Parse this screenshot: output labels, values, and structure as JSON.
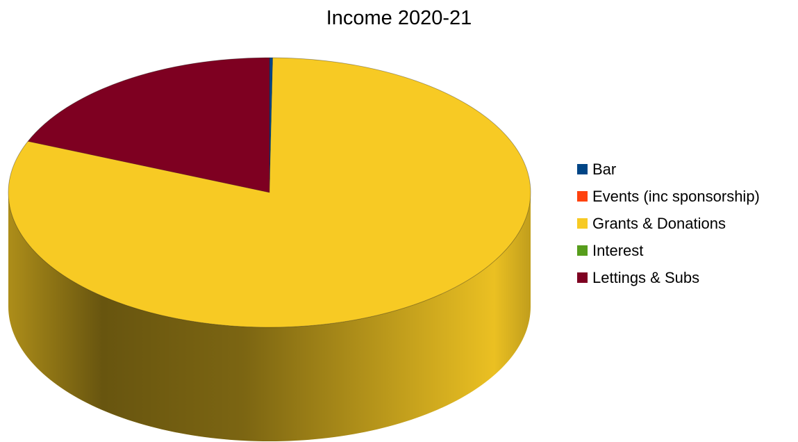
{
  "chart_data": {
    "type": "pie",
    "title": "Income 2020-21",
    "categories": [
      "Bar",
      "Events (inc sponsorship)",
      "Grants & Donations",
      "Interest",
      "Lettings & Subs"
    ],
    "values": [
      0.2,
      0.0,
      81.0,
      0.0,
      18.8
    ],
    "unit": "percent of total (estimated)",
    "colors": [
      "#004586",
      "#ff420e",
      "#f7ca24",
      "#579d1c",
      "#7e0021"
    ],
    "style": "3d",
    "legend_position": "right"
  }
}
